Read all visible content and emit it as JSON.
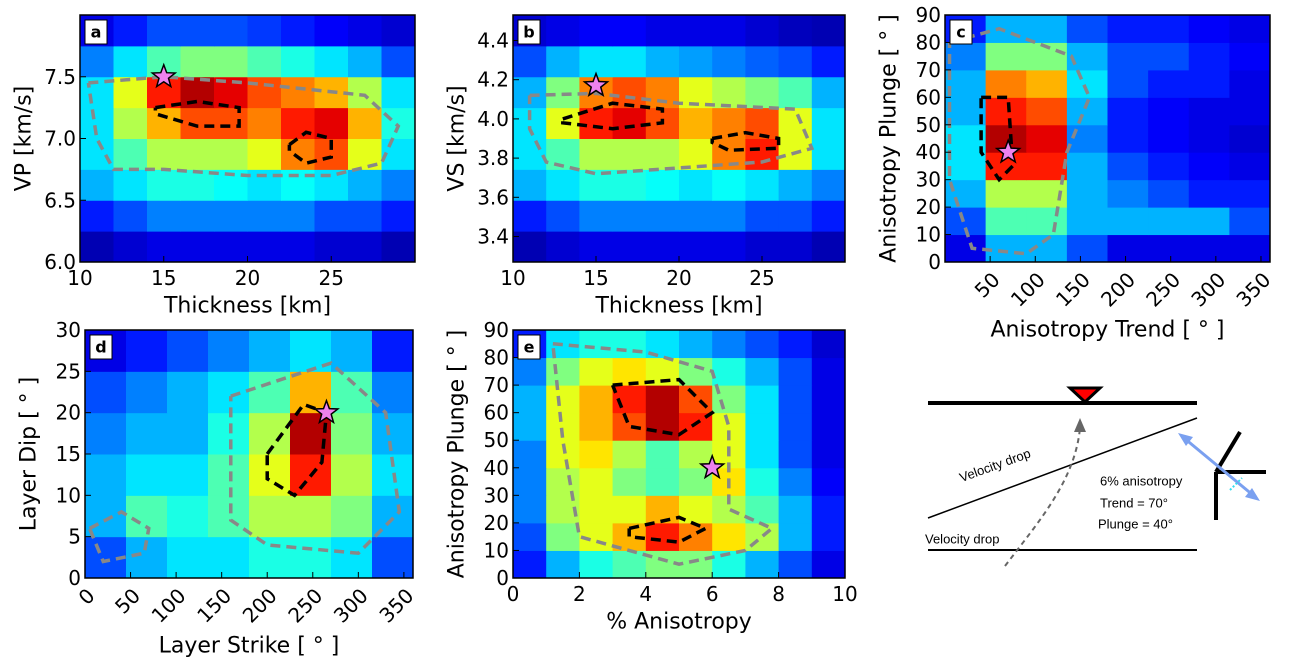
{
  "chart_data": [
    {
      "type": "heatmap",
      "panel": "a",
      "xlabel": "Thickness [km]",
      "ylabel": "VP [km/s]",
      "xlim": [
        10,
        30
      ],
      "ylim": [
        6,
        8
      ],
      "xticks": [
        10,
        15,
        20,
        25
      ],
      "yticks": [
        {
          "value": 6,
          "label": "6.0"
        },
        6.5,
        {
          "value": 7,
          "label": "7.0"
        },
        7.5
      ],
      "z": [
        [
          0.05,
          0.08,
          0.1,
          0.1,
          0.1,
          0.1,
          0.1,
          0.08,
          0.08,
          0.05
        ],
        [
          0.15,
          0.2,
          0.25,
          0.25,
          0.25,
          0.25,
          0.25,
          0.2,
          0.2,
          0.15
        ],
        [
          0.3,
          0.35,
          0.4,
          0.4,
          0.38,
          0.35,
          0.38,
          0.35,
          0.3,
          0.25
        ],
        [
          0.35,
          0.45,
          0.55,
          0.55,
          0.55,
          0.6,
          0.75,
          0.8,
          0.6,
          0.35
        ],
        [
          0.35,
          0.55,
          0.7,
          0.8,
          0.8,
          0.75,
          0.85,
          0.9,
          0.7,
          0.4
        ],
        [
          0.35,
          0.6,
          0.85,
          0.95,
          0.9,
          0.8,
          0.75,
          0.7,
          0.55,
          0.35
        ],
        [
          0.25,
          0.35,
          0.45,
          0.5,
          0.5,
          0.45,
          0.4,
          0.35,
          0.3,
          0.2
        ],
        [
          0.1,
          0.15,
          0.2,
          0.2,
          0.2,
          0.18,
          0.15,
          0.12,
          0.1,
          0.08
        ]
      ],
      "contours": [
        {
          "color": "#888888",
          "x": [
            10.5,
            15,
            20,
            27,
            29,
            28,
            25,
            20,
            15,
            12,
            11,
            10.5
          ],
          "y": [
            7.45,
            7.5,
            7.45,
            7.35,
            7.1,
            6.8,
            6.7,
            6.7,
            6.75,
            6.75,
            7.0,
            7.45
          ]
        },
        {
          "color": "#000000",
          "x": [
            14.5,
            17,
            19.5,
            19.5,
            17,
            14.5,
            14.5
          ],
          "y": [
            7.25,
            7.3,
            7.25,
            7.1,
            7.1,
            7.2,
            7.25
          ]
        },
        {
          "color": "#000000",
          "x": [
            22.5,
            23.5,
            25,
            25,
            23.5,
            22.5,
            22.5
          ],
          "y": [
            6.95,
            7.05,
            7.0,
            6.85,
            6.8,
            6.9,
            6.95
          ]
        }
      ],
      "markers": {
        "color": "#ee82ee",
        "x": [
          15
        ],
        "y": [
          7.5
        ]
      }
    },
    {
      "type": "heatmap",
      "panel": "b",
      "xlabel": "Thickness [km]",
      "ylabel": "VS [km/s]",
      "xlim": [
        10,
        30
      ],
      "ylim": [
        3.27,
        4.53
      ],
      "xticks": [
        10,
        15,
        20,
        25
      ],
      "yticks": [
        3.4,
        3.6,
        3.8,
        {
          "value": 4,
          "label": "4.0"
        },
        4.2,
        4.4
      ],
      "z": [
        [
          0.05,
          0.08,
          0.1,
          0.1,
          0.1,
          0.1,
          0.1,
          0.08,
          0.08,
          0.05
        ],
        [
          0.15,
          0.2,
          0.25,
          0.25,
          0.25,
          0.25,
          0.25,
          0.2,
          0.2,
          0.15
        ],
        [
          0.3,
          0.35,
          0.4,
          0.4,
          0.38,
          0.35,
          0.38,
          0.35,
          0.3,
          0.25
        ],
        [
          0.35,
          0.45,
          0.55,
          0.55,
          0.55,
          0.6,
          0.75,
          0.85,
          0.6,
          0.35
        ],
        [
          0.35,
          0.6,
          0.85,
          0.9,
          0.8,
          0.7,
          0.75,
          0.8,
          0.6,
          0.35
        ],
        [
          0.3,
          0.5,
          0.75,
          0.8,
          0.75,
          0.6,
          0.55,
          0.5,
          0.45,
          0.3
        ],
        [
          0.2,
          0.3,
          0.35,
          0.35,
          0.3,
          0.28,
          0.25,
          0.22,
          0.2,
          0.15
        ],
        [
          0.08,
          0.1,
          0.12,
          0.12,
          0.1,
          0.1,
          0.1,
          0.08,
          0.06,
          0.05
        ]
      ],
      "contours": [
        {
          "color": "#888888",
          "x": [
            11,
            15,
            20,
            27,
            28,
            25,
            20,
            15,
            12,
            11,
            11
          ],
          "y": [
            4.12,
            4.13,
            4.08,
            4.05,
            3.85,
            3.78,
            3.75,
            3.72,
            3.78,
            3.95,
            4.12
          ]
        },
        {
          "color": "#000000",
          "x": [
            13,
            16,
            19,
            19,
            16,
            13,
            13
          ],
          "y": [
            4.0,
            4.08,
            4.05,
            3.98,
            3.95,
            3.98,
            4.0
          ]
        },
        {
          "color": "#000000",
          "x": [
            22,
            24,
            26,
            26,
            23,
            22,
            22
          ],
          "y": [
            3.9,
            3.93,
            3.9,
            3.85,
            3.84,
            3.88,
            3.9
          ]
        }
      ],
      "markers": {
        "color": "#ee82ee",
        "x": [
          15
        ],
        "y": [
          4.17
        ]
      }
    },
    {
      "type": "heatmap",
      "panel": "c",
      "xlabel": "Anisotropy Trend [ ° ]",
      "ylabel": "Anisotropy Plunge [ ° ]",
      "xlim": [
        0,
        360
      ],
      "ylim": [
        0,
        90
      ],
      "xticks": [
        50,
        100,
        150,
        200,
        250,
        300,
        350
      ],
      "rotate_xticks": true,
      "yticks": [
        0,
        10,
        20,
        30,
        40,
        50,
        60,
        70,
        80,
        90
      ],
      "z": [
        [
          0.1,
          0.3,
          0.3,
          0.2,
          0.1,
          0.1,
          0.1,
          0.1
        ],
        [
          0.2,
          0.45,
          0.45,
          0.3,
          0.3,
          0.3,
          0.3,
          0.2
        ],
        [
          0.3,
          0.55,
          0.55,
          0.3,
          0.25,
          0.2,
          0.15,
          0.15
        ],
        [
          0.35,
          0.85,
          0.85,
          0.3,
          0.2,
          0.15,
          0.12,
          0.1
        ],
        [
          0.35,
          0.95,
          0.9,
          0.25,
          0.15,
          0.12,
          0.1,
          0.08
        ],
        [
          0.3,
          0.85,
          0.8,
          0.3,
          0.15,
          0.12,
          0.1,
          0.1
        ],
        [
          0.3,
          0.75,
          0.7,
          0.35,
          0.2,
          0.15,
          0.15,
          0.1
        ],
        [
          0.25,
          0.5,
          0.5,
          0.3,
          0.2,
          0.2,
          0.15,
          0.12
        ],
        [
          0.15,
          0.3,
          0.3,
          0.2,
          0.15,
          0.15,
          0.12,
          0.1
        ]
      ],
      "contours": [
        {
          "color": "#888888",
          "x": [
            5,
            60,
            140,
            160,
            135,
            120,
            90,
            30,
            5,
            5
          ],
          "y": [
            80,
            85,
            75,
            60,
            40,
            10,
            3,
            5,
            30,
            80
          ]
        },
        {
          "color": "#000000",
          "x": [
            40,
            70,
            75,
            60,
            40,
            40
          ],
          "y": [
            60,
            60,
            35,
            30,
            40,
            60
          ]
        }
      ],
      "markers": {
        "color": "#ee82ee",
        "x": [
          70
        ],
        "y": [
          40
        ]
      }
    },
    {
      "type": "heatmap",
      "panel": "d",
      "xlabel": "Layer Strike [ ° ]",
      "ylabel": "Layer Dip [ ° ]",
      "xlim": [
        0,
        360
      ],
      "ylim": [
        0,
        30
      ],
      "xticks": [
        0,
        50,
        100,
        150,
        200,
        250,
        300,
        350
      ],
      "rotate_xticks": true,
      "yticks": [
        0,
        5,
        10,
        15,
        20,
        25,
        30
      ],
      "z": [
        [
          0.2,
          0.3,
          0.35,
          0.35,
          0.4,
          0.4,
          0.35,
          0.2
        ],
        [
          0.3,
          0.45,
          0.4,
          0.45,
          0.55,
          0.55,
          0.5,
          0.3
        ],
        [
          0.3,
          0.35,
          0.35,
          0.45,
          0.6,
          0.85,
          0.55,
          0.35
        ],
        [
          0.25,
          0.3,
          0.3,
          0.4,
          0.55,
          0.95,
          0.5,
          0.3
        ],
        [
          0.2,
          0.25,
          0.3,
          0.35,
          0.45,
          0.7,
          0.45,
          0.25
        ],
        [
          0.1,
          0.15,
          0.2,
          0.25,
          0.3,
          0.35,
          0.3,
          0.15
        ]
      ],
      "contours": [
        {
          "color": "#888888",
          "x": [
            160,
            270,
            330,
            345,
            300,
            200,
            160,
            160
          ],
          "y": [
            22,
            26,
            20,
            8,
            3,
            4,
            7,
            22
          ]
        },
        {
          "color": "#888888",
          "x": [
            5,
            40,
            70,
            65,
            20,
            5
          ],
          "y": [
            6,
            8,
            6,
            3,
            2,
            6
          ]
        },
        {
          "color": "#000000",
          "x": [
            200,
            240,
            265,
            260,
            230,
            200,
            200
          ],
          "y": [
            15,
            21,
            20,
            14,
            10,
            12,
            15
          ]
        }
      ],
      "markers": {
        "color": "#ee82ee",
        "x": [
          265
        ],
        "y": [
          20
        ]
      }
    },
    {
      "type": "heatmap",
      "panel": "e",
      "xlabel": "% Anisotropy",
      "ylabel": "Anisotropy Plunge [ ° ]",
      "xlim": [
        0,
        10
      ],
      "ylim": [
        0,
        90
      ],
      "xticks": [
        0,
        2,
        4,
        6,
        8,
        10
      ],
      "yticks": [
        0,
        10,
        20,
        30,
        40,
        50,
        60,
        70,
        80,
        90
      ],
      "z": [
        [
          0.15,
          0.3,
          0.4,
          0.45,
          0.5,
          0.5,
          0.4,
          0.3,
          0.2,
          0.1
        ],
        [
          0.2,
          0.5,
          0.6,
          0.7,
          0.85,
          0.75,
          0.65,
          0.55,
          0.3,
          0.15
        ],
        [
          0.25,
          0.55,
          0.6,
          0.6,
          0.7,
          0.6,
          0.55,
          0.45,
          0.3,
          0.15
        ],
        [
          0.25,
          0.55,
          0.6,
          0.5,
          0.45,
          0.5,
          0.65,
          0.4,
          0.25,
          0.12
        ],
        [
          0.25,
          0.6,
          0.65,
          0.55,
          0.45,
          0.55,
          0.6,
          0.35,
          0.2,
          0.1
        ],
        [
          0.3,
          0.6,
          0.7,
          0.8,
          0.95,
          0.85,
          0.6,
          0.35,
          0.2,
          0.1
        ],
        [
          0.3,
          0.6,
          0.7,
          0.85,
          0.95,
          0.8,
          0.5,
          0.35,
          0.2,
          0.1
        ],
        [
          0.25,
          0.5,
          0.6,
          0.65,
          0.6,
          0.5,
          0.4,
          0.3,
          0.2,
          0.1
        ],
        [
          0.15,
          0.35,
          0.4,
          0.4,
          0.35,
          0.3,
          0.25,
          0.2,
          0.15,
          0.08
        ]
      ],
      "contours": [
        {
          "color": "#888888",
          "x": [
            1.2,
            4,
            6,
            6.5,
            6.5,
            7.8,
            7,
            5,
            2,
            1.5,
            1.2
          ],
          "y": [
            85,
            82,
            75,
            55,
            25,
            18,
            10,
            5,
            15,
            50,
            85
          ]
        },
        {
          "color": "#000000",
          "x": [
            3,
            5,
            6,
            5,
            3.5,
            3
          ],
          "y": [
            70,
            72,
            60,
            52,
            55,
            70
          ]
        },
        {
          "color": "#000000",
          "x": [
            3.5,
            5,
            5.8,
            5,
            3.5,
            3.5
          ],
          "y": [
            18,
            22,
            18,
            13,
            15,
            18
          ]
        }
      ],
      "markers": {
        "color": "#ee82ee",
        "x": [
          6
        ],
        "y": [
          40
        ]
      }
    }
  ],
  "diagram": {
    "layer_top": "Velocity drop",
    "layer_bottom": "Velocity drop",
    "anisotropy": "6% anisotropy",
    "trend": "Trend = 70°",
    "plunge": "Plunge = 40°"
  }
}
